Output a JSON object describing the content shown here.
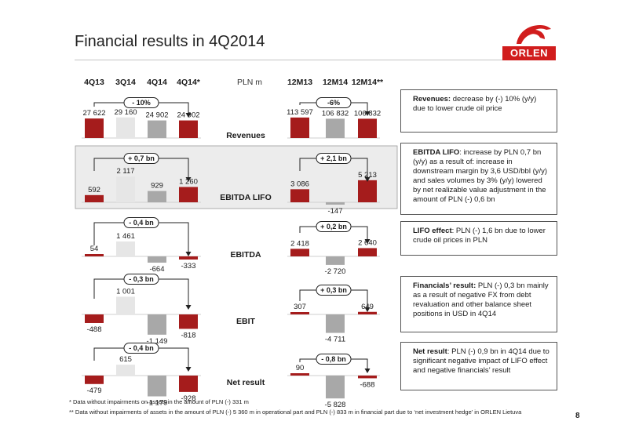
{
  "title": "Financial results in 4Q2014",
  "logo": {
    "name": "orlen-logo",
    "word": "ORLEN"
  },
  "unit": "PLN m",
  "columns_quarter": [
    "4Q13",
    "3Q14",
    "4Q14",
    "4Q14*"
  ],
  "columns_annual": [
    "12M13",
    "12M14",
    "12M14**"
  ],
  "colors": {
    "accent": "#a51c1c",
    "muted": "#a8a8a8",
    "light": "#e6e6e6",
    "highlight_band": "#ececec"
  },
  "rows": [
    {
      "label": "Revenues",
      "quarter_labels": [
        "27 622",
        "29 160",
        "24 902",
        "24 902"
      ],
      "quarter_values": [
        27622,
        29160,
        24902,
        24902
      ],
      "quarter_badge": "- 10%",
      "annual_labels": [
        "113 597",
        "106 832",
        "106 832"
      ],
      "annual_values": [
        113597,
        106832,
        106832
      ],
      "annual_badge": "-6%"
    },
    {
      "label": "EBITDA LIFO",
      "quarter_labels": [
        "592",
        "2 117",
        "929",
        "1 260"
      ],
      "quarter_values": [
        592,
        2117,
        929,
        1260
      ],
      "quarter_badge": "+ 0,7 bn",
      "annual_labels": [
        "3 086",
        "-147",
        "5 213"
      ],
      "annual_values": [
        3086,
        -147,
        5213
      ],
      "annual_badge": "+ 2,1 bn"
    },
    {
      "label": "EBITDA",
      "quarter_labels": [
        "54",
        "1 461",
        "-664",
        "-333"
      ],
      "quarter_values": [
        54,
        1461,
        -664,
        -333
      ],
      "quarter_badge": "- 0,4 bn",
      "annual_labels": [
        "2 418",
        "-2 720",
        "2 640"
      ],
      "annual_values": [
        2418,
        -2720,
        2640
      ],
      "annual_badge": "+ 0,2 bn"
    },
    {
      "label": "EBIT",
      "quarter_labels": [
        "-488",
        "1 001",
        "-1 149",
        "-818"
      ],
      "quarter_values": [
        -488,
        1001,
        -1149,
        -818
      ],
      "quarter_badge": "- 0,3 bn",
      "annual_labels": [
        "307",
        "-4 711",
        "649"
      ],
      "annual_values": [
        307,
        -4711,
        649
      ],
      "annual_badge": "+ 0,3 bn"
    },
    {
      "label": "Net result",
      "quarter_labels": [
        "-479",
        "615",
        "-1 179",
        "-928"
      ],
      "quarter_values": [
        -479,
        615,
        -1179,
        -928
      ],
      "quarter_badge": "- 0,4 bn",
      "annual_labels": [
        "90",
        "-5 828",
        "-688"
      ],
      "annual_values": [
        90,
        -5828,
        -688
      ],
      "annual_badge": "- 0,8 bn"
    }
  ],
  "commentary": [
    {
      "lead": "Revenues:",
      "text": " decrease by (-) 10% (y/y) due to lower crude oil price"
    },
    {
      "lead": "EBITDA LIFO",
      "text": ": increase by PLN 0,7 bn (y/y) as a result of: increase in downstream margin by 3,6 USD/bbl (y/y) and sales volumes by 3% (y/y) lowered by net realizable value adjustment in the amount of PLN (-) 0,6 bn"
    },
    {
      "lead": "LIFO effect",
      "text": ": PLN (-) 1,6 bn due to lower crude oil prices in PLN"
    },
    {
      "lead": "Financials’ result:",
      "text": " PLN (-) 0,3 bn mainly as a result of negative FX from debt revaluation and other balance sheet positions in USD in 4Q14"
    },
    {
      "lead": "Net result",
      "text": ": PLN (-) 0,9 bn in 4Q14 due to significant negative impact of LIFO effect and negative financials’ result"
    }
  ],
  "footnotes": [
    "*   Data without impairments on assets in the amount of PLN (-) 331 m",
    "**  Data without impairments of assets in the amount of PLN (-) 5 360 m in operational part and PLN (-) 833 m in financial part due to ‘net investment hedge’ in ORLEN Lietuva"
  ],
  "page_number": "8"
}
